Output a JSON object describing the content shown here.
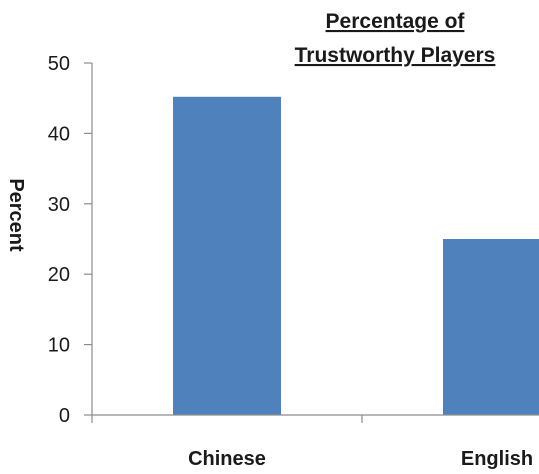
{
  "chart_data": {
    "type": "bar",
    "title_lines": [
      "Percentage of",
      "Trustworthy Players"
    ],
    "ylabel": "Percent",
    "xlabel": "",
    "categories": [
      "Chinese",
      "English"
    ],
    "values": [
      45.2,
      25
    ],
    "ylim": [
      0,
      50
    ],
    "yticks": [
      0,
      10,
      20,
      30,
      40,
      50
    ],
    "grid": false,
    "legend": "none",
    "bar_color": "#4f81bd",
    "axis_color": "#8c8c8c"
  }
}
